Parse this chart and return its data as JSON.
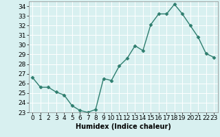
{
  "x": [
    0,
    1,
    2,
    3,
    4,
    5,
    6,
    7,
    8,
    9,
    10,
    11,
    12,
    13,
    14,
    15,
    16,
    17,
    18,
    19,
    20,
    21,
    22,
    23
  ],
  "y": [
    26.6,
    25.6,
    25.6,
    25.1,
    24.8,
    23.7,
    23.2,
    23.0,
    23.3,
    26.5,
    26.3,
    27.8,
    28.6,
    29.9,
    29.4,
    32.1,
    33.2,
    33.2,
    34.2,
    33.2,
    32.0,
    30.8,
    29.1,
    28.7
  ],
  "line_color": "#2e7d6e",
  "marker": "D",
  "marker_size": 2.5,
  "linewidth": 1.0,
  "xlabel": "Humidex (Indice chaleur)",
  "xlim": [
    -0.5,
    23.5
  ],
  "ylim": [
    23,
    34.5
  ],
  "yticks": [
    23,
    24,
    25,
    26,
    27,
    28,
    29,
    30,
    31,
    32,
    33,
    34
  ],
  "xtick_labels": [
    "0",
    "1",
    "2",
    "3",
    "4",
    "5",
    "6",
    "7",
    "8",
    "9",
    "10",
    "11",
    "12",
    "13",
    "14",
    "15",
    "16",
    "17",
    "18",
    "19",
    "20",
    "21",
    "22",
    "23"
  ],
  "background_color": "#d8f0f0",
  "grid_color": "#ffffff",
  "axis_fontsize": 7,
  "tick_fontsize": 6.5
}
